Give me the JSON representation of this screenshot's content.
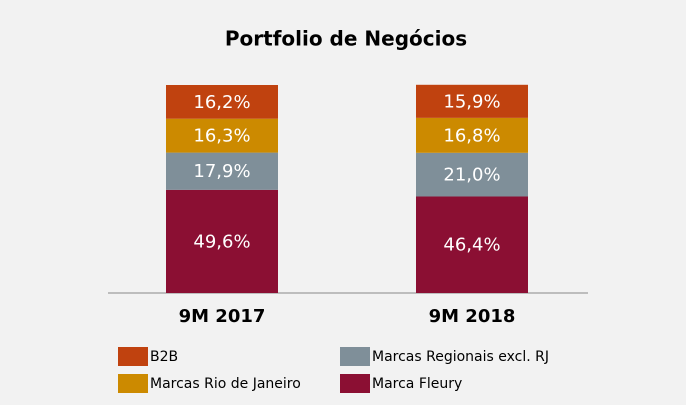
{
  "chart_data": {
    "type": "stacked_bar",
    "title": "Portfolio de Negócios",
    "categories": [
      "9M 2017",
      "9M 2018"
    ],
    "ylim": [
      0,
      100
    ],
    "series": [
      {
        "name": "Marca Fleury",
        "color": "#8b0f33",
        "values": [
          49.6,
          46.4
        ],
        "value_labels": [
          "49,6%",
          "46,4%"
        ]
      },
      {
        "name": "Marcas Regionais excl. RJ",
        "color": "#7f8f99",
        "values": [
          17.9,
          21.0
        ],
        "value_labels": [
          "17,9%",
          "21,0%"
        ]
      },
      {
        "name": "Marcas Rio de Janeiro",
        "color": "#cc8a00",
        "values": [
          16.3,
          16.8
        ],
        "value_labels": [
          "16,3%",
          "16,8%"
        ]
      },
      {
        "name": "B2B",
        "color": "#c0420f",
        "values": [
          16.2,
          15.9
        ],
        "value_labels": [
          "16,2%",
          "15,9%"
        ]
      }
    ]
  }
}
